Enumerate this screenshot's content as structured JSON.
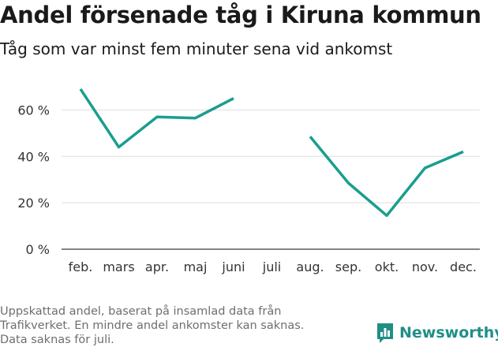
{
  "header": {
    "title": "Andel försenade tåg i Kiruna kommun",
    "subtitle": "Tåg som var minst fem minuter sena vid ankomst"
  },
  "footnote": {
    "line1": "Uppskattad andel, baserat på insamlad data från",
    "line2": "Trafikverket. En mindre andel ankomster kan saknas.",
    "line3": "Data saknas för juli."
  },
  "brand": {
    "name": "Newsworthy",
    "icon": "bar-chart-speech-bubble-icon",
    "color": "#1f8f86"
  },
  "chart_data": {
    "type": "line",
    "title": "Andel försenade tåg i Kiruna kommun",
    "categories": [
      "feb.",
      "mars",
      "apr.",
      "maj",
      "juni",
      "juli",
      "aug.",
      "sep.",
      "okt.",
      "nov.",
      "dec."
    ],
    "series": [
      {
        "color": "#1a9e8f",
        "values": [
          69,
          44,
          57,
          56.5,
          65,
          null,
          48.5,
          28.5,
          14.5,
          35,
          42
        ]
      }
    ],
    "y_ticks": [
      0,
      20,
      40,
      60
    ],
    "y_tick_suffix": " %",
    "ylim": [
      0,
      70
    ],
    "grid": true
  }
}
